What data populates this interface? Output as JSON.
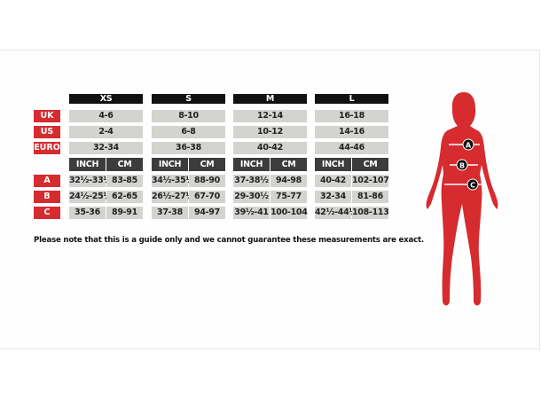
{
  "sizes": [
    "XS",
    "S",
    "M",
    "L"
  ],
  "row_labels": {
    "uk": "UK",
    "us": "US",
    "euro": "EURO",
    "a": "A",
    "b": "B",
    "c": "C"
  },
  "unit_labels": {
    "inch": "INCH",
    "cm": "CM"
  },
  "table": {
    "XS": {
      "uk": "4-6",
      "us": "2-4",
      "euro": "32-34",
      "a": [
        "32½-33½",
        "83-85"
      ],
      "b": [
        "24½-25½",
        "62-65"
      ],
      "c": [
        "35-36",
        "89-91"
      ]
    },
    "S": {
      "uk": "8-10",
      "us": "6-8",
      "euro": "36-38",
      "a": [
        "34½-35½",
        "88-90"
      ],
      "b": [
        "26½-27½",
        "67-70"
      ],
      "c": [
        "37-38",
        "94-97"
      ]
    },
    "M": {
      "uk": "12-14",
      "us": "10-12",
      "euro": "40-42",
      "a": [
        "37-38½",
        "94-98"
      ],
      "b": [
        "29-30½",
        "75-77"
      ],
      "c": [
        "39½-41",
        "100-104"
      ]
    },
    "L": {
      "uk": "16-18",
      "us": "14-16",
      "euro": "44-46",
      "a": [
        "40-42",
        "102-107"
      ],
      "b": [
        "32-34",
        "81-86"
      ],
      "c": [
        "42½-44½",
        "108-113"
      ]
    }
  },
  "note": "Please note that this is a guide only and we cannot guarantee these measurements are exact.",
  "figure": {
    "markers": [
      "A",
      "B",
      "C"
    ],
    "color": "#d62b2f"
  },
  "colors": {
    "accent": "#d62b2f",
    "header": "#111111",
    "subheader": "#3c3c3c",
    "cell": "#d3d3d0"
  }
}
